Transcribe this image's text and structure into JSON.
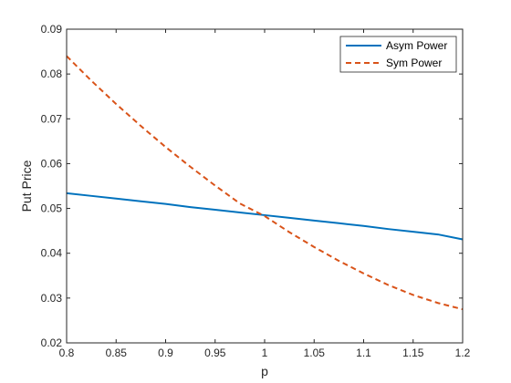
{
  "chart_data": {
    "type": "line",
    "xlabel": "p",
    "ylabel": "Put Price",
    "xlim": [
      0.8,
      1.2
    ],
    "ylim": [
      0.02,
      0.09
    ],
    "xticks": [
      "0.8",
      "0.85",
      "0.9",
      "0.95",
      "1",
      "1.05",
      "1.1",
      "1.15",
      "1.2"
    ],
    "yticks": [
      "0.02",
      "0.03",
      "0.04",
      "0.05",
      "0.06",
      "0.07",
      "0.08",
      "0.09"
    ],
    "grid": false,
    "legend_position": "top-right",
    "x": [
      0.8,
      0.825,
      0.85,
      0.875,
      0.9,
      0.925,
      0.95,
      0.975,
      1.0,
      1.025,
      1.05,
      1.075,
      1.1,
      1.125,
      1.15,
      1.175,
      1.2
    ],
    "series": [
      {
        "name": "Asym Power",
        "color": "#0072BD",
        "style": "solid",
        "values": [
          0.0534,
          0.0528,
          0.0522,
          0.0516,
          0.051,
          0.0503,
          0.0497,
          0.0491,
          0.0485,
          0.0479,
          0.0473,
          0.0467,
          0.0461,
          0.0454,
          0.0448,
          0.0442,
          0.0431
        ]
      },
      {
        "name": "Sym Power",
        "color": "#D95319",
        "style": "dashed",
        "values": [
          0.084,
          0.0785,
          0.0733,
          0.0684,
          0.0637,
          0.0593,
          0.0551,
          0.0511,
          0.0483,
          0.0447,
          0.0414,
          0.0383,
          0.0355,
          0.0329,
          0.0307,
          0.0289,
          0.0275
        ]
      }
    ]
  }
}
